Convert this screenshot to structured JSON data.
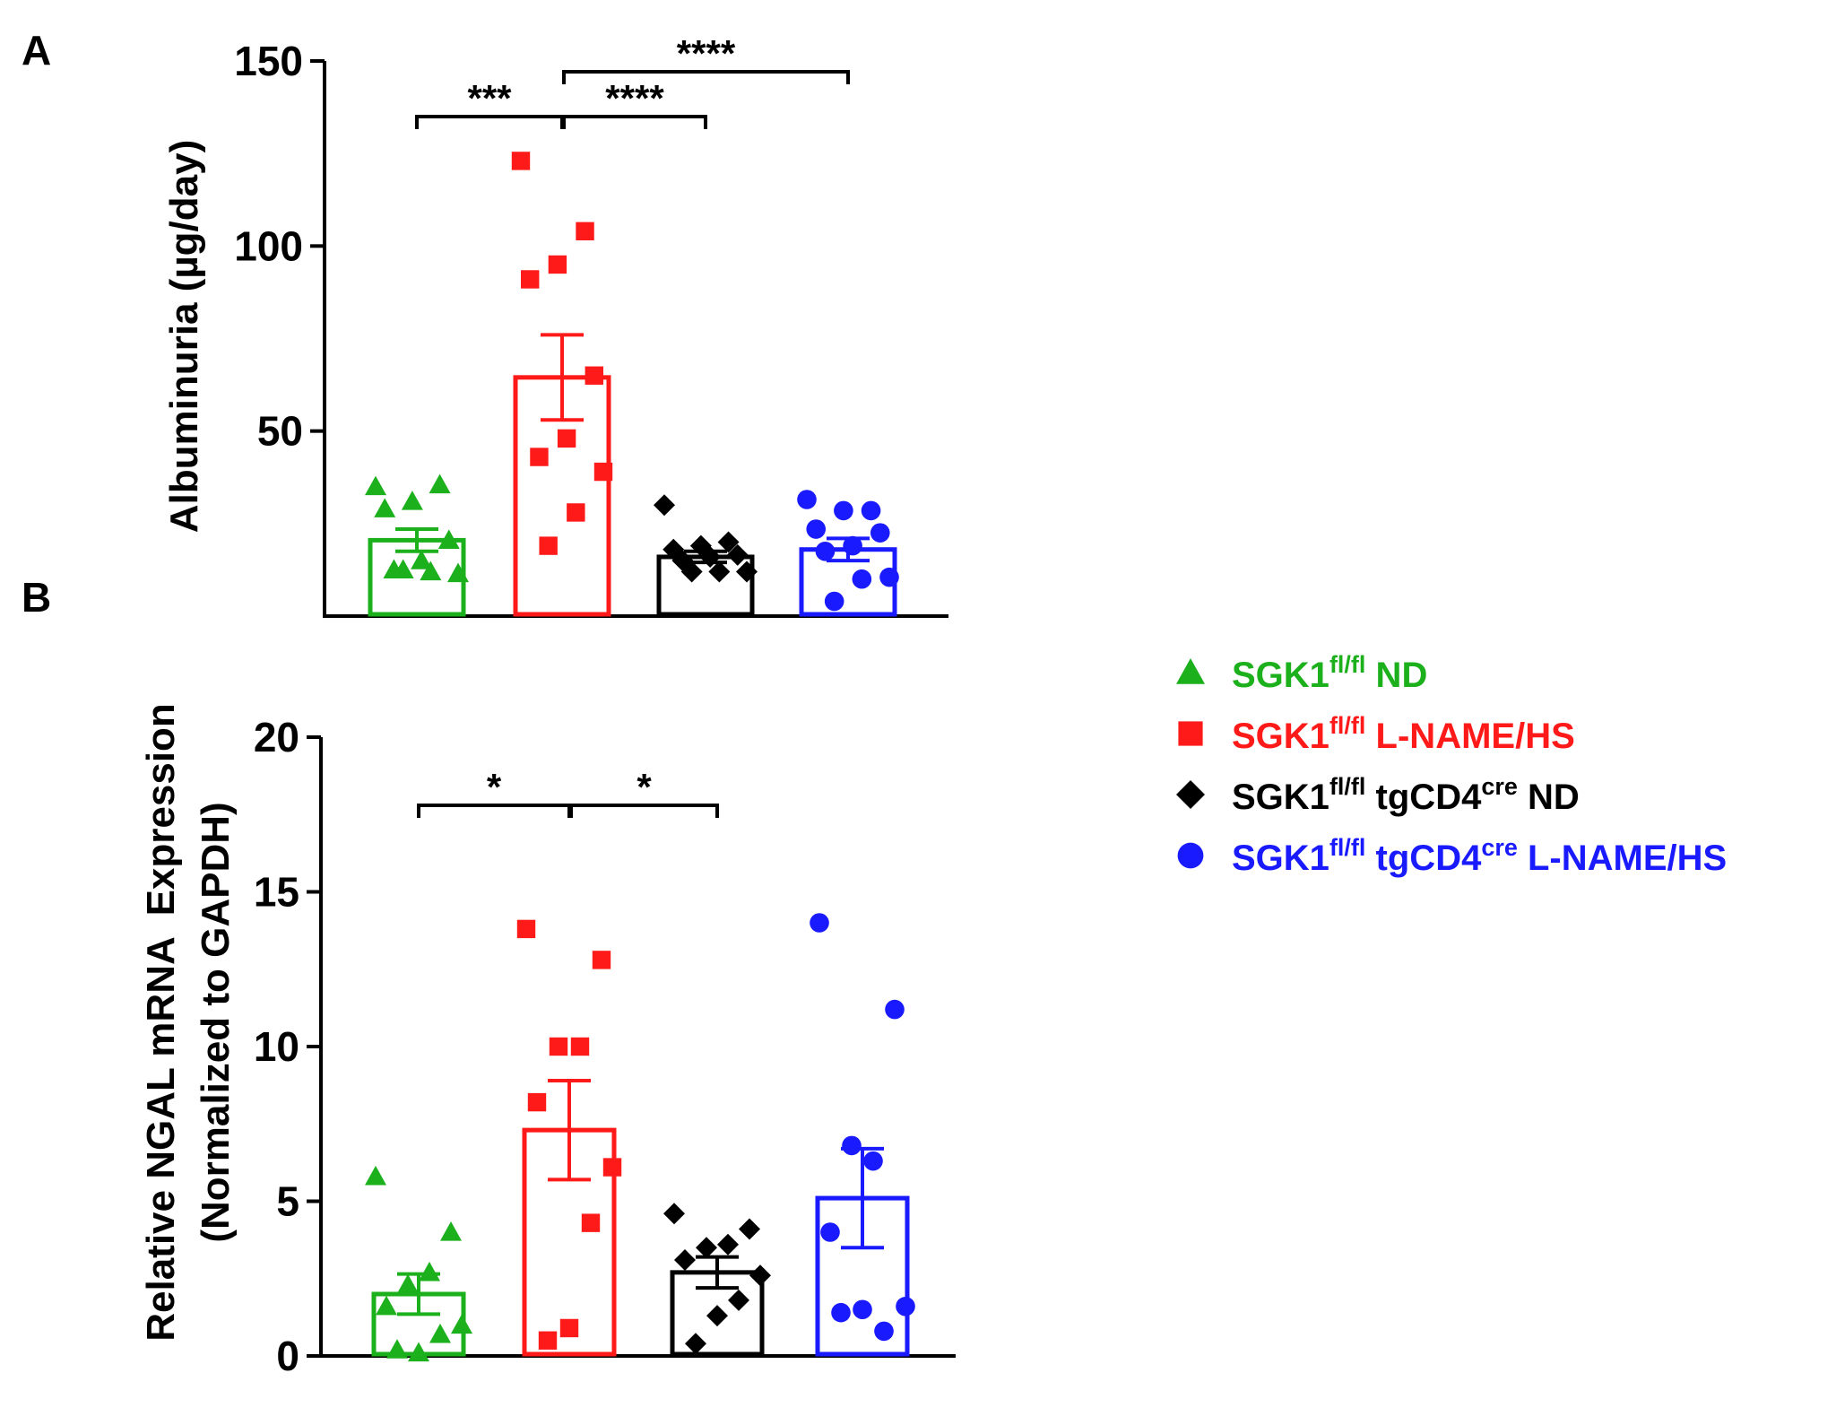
{
  "colors": {
    "green": "#1DB01D",
    "red": "#FF1A1A",
    "black": "#000000",
    "blue": "#1A1AFF"
  },
  "legend": [
    {
      "prefix": "SGK1",
      "sup1": "fl/fl",
      "mid": " ND",
      "sup2": "",
      "tail": "",
      "marker": "triangle",
      "color": "#1DB01D"
    },
    {
      "prefix": "SGK1",
      "sup1": "fl/fl",
      "mid": " L-NAME/HS",
      "sup2": "",
      "tail": "",
      "marker": "square",
      "color": "#FF1A1A"
    },
    {
      "prefix": "SGK1",
      "sup1": "fl/fl",
      "mid": " tgCD4",
      "sup2": "cre",
      "tail": " ND",
      "marker": "diamond",
      "color": "#000000"
    },
    {
      "prefix": "SGK1",
      "sup1": "fl/fl",
      "mid": " tgCD4",
      "sup2": "cre",
      "tail": " L-NAME/HS",
      "marker": "circle",
      "color": "#1A1AFF"
    }
  ],
  "chart_data": [
    {
      "panel": "A",
      "type": "bar",
      "ylabel": "Albuminuria (µg/day)",
      "ylim": [
        0,
        150
      ],
      "yticks": [
        50,
        100,
        150
      ],
      "categories": [
        "SGK1fl/fl ND",
        "SGK1fl/fl L-NAME/HS",
        "SGK1fl/fl tgCD4cre ND",
        "SGK1fl/fl tgCD4cre L-NAME/HS"
      ],
      "series": [
        {
          "name": "SGK1fl/fl ND",
          "mean": 20.5,
          "sem": 3,
          "marker": "triangle",
          "color": "#1DB01D",
          "points": [
            35,
            35.5,
            31,
            29,
            20.5,
            15,
            12.5,
            11.5,
            12,
            12.5
          ]
        },
        {
          "name": "SGK1fl/fl L-NAME/HS",
          "mean": 64.5,
          "sem": 11.5,
          "marker": "square",
          "color": "#FF1A1A",
          "points": [
            123,
            104,
            95,
            91,
            65,
            48,
            43,
            39,
            28,
            19
          ]
        },
        {
          "name": "SGK1fl/fl tgCD4cre ND",
          "mean": 16,
          "sem": 1.5,
          "marker": "diamond",
          "color": "#000000",
          "points": [
            30,
            20,
            19,
            18,
            16.5,
            16,
            15,
            12,
            12,
            12
          ]
        },
        {
          "name": "SGK1fl/fl tgCD4cre L-NAME/HS",
          "mean": 18,
          "sem": 3,
          "marker": "circle",
          "color": "#1A1AFF",
          "points": [
            31.5,
            28.5,
            28.5,
            23.5,
            22.5,
            19,
            17.5,
            10.5,
            10,
            4
          ]
        }
      ],
      "significance": [
        {
          "from": 0,
          "to": 1,
          "label": "***"
        },
        {
          "from": 1,
          "to": 2,
          "label": "****"
        },
        {
          "from": 1,
          "to": 3,
          "label": "****"
        }
      ]
    },
    {
      "panel": "B",
      "type": "bar",
      "ylabel": "Relative NGAL mRNA  Expression",
      "ylabel2": "(Normalized to GAPDH)",
      "ylim": [
        0,
        20
      ],
      "yticks": [
        0,
        5,
        10,
        15,
        20
      ],
      "categories": [
        "SGK1fl/fl ND",
        "SGK1fl/fl L-NAME/HS",
        "SGK1fl/fl tgCD4cre ND",
        "SGK1fl/fl tgCD4cre L-NAME/HS"
      ],
      "series": [
        {
          "name": "SGK1fl/fl ND",
          "mean": 2.0,
          "sem": 0.65,
          "marker": "triangle",
          "color": "#1DB01D",
          "points": [
            5.8,
            4.0,
            2.7,
            2.3,
            1.6,
            1.0,
            0.7,
            0.1,
            0.2
          ]
        },
        {
          "name": "SGK1fl/fl L-NAME/HS",
          "mean": 7.3,
          "sem": 1.6,
          "marker": "square",
          "color": "#FF1A1A",
          "points": [
            13.8,
            12.8,
            10.0,
            10.0,
            8.2,
            6.1,
            4.3,
            0.9,
            0.5
          ]
        },
        {
          "name": "SGK1fl/fl tgCD4cre ND",
          "mean": 2.7,
          "sem": 0.5,
          "marker": "diamond",
          "color": "#000000",
          "points": [
            4.6,
            4.1,
            3.6,
            3.5,
            3.1,
            2.6,
            1.8,
            1.3,
            0.4
          ]
        },
        {
          "name": "SGK1fl/fl tgCD4cre L-NAME/HS",
          "mean": 5.1,
          "sem": 1.6,
          "marker": "circle",
          "color": "#1A1AFF",
          "points": [
            14.0,
            11.2,
            6.3,
            6.8,
            4.0,
            1.6,
            0.8,
            1.5,
            1.4
          ]
        }
      ],
      "significance": [
        {
          "from": 0,
          "to": 1,
          "label": "*"
        },
        {
          "from": 1,
          "to": 2,
          "label": "*"
        }
      ]
    }
  ]
}
